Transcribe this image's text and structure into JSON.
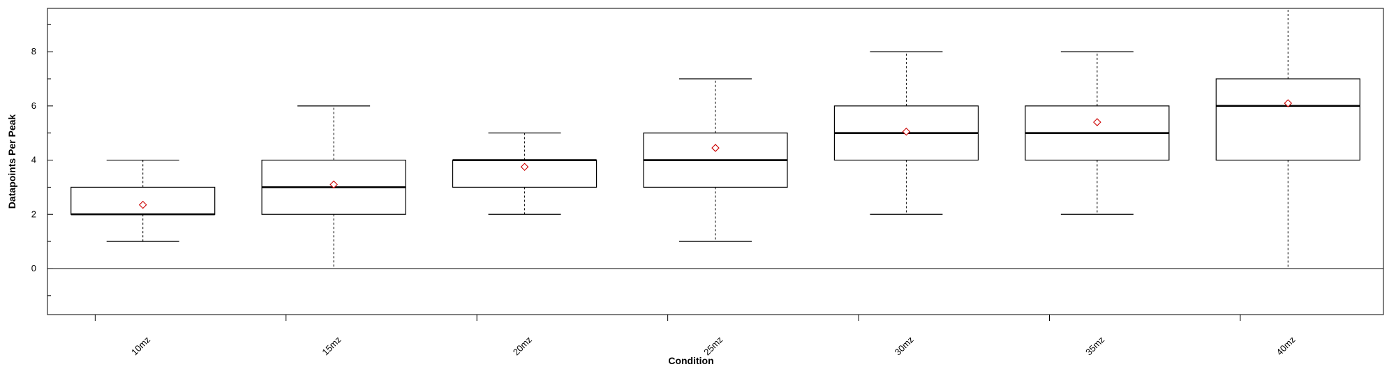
{
  "chart_data": {
    "type": "box",
    "xlabel": "Condition",
    "ylabel": "Datapoints Per Peak",
    "ylim": [
      -1.7,
      9.6
    ],
    "yticks": [
      0,
      2,
      4,
      6,
      8
    ],
    "categories": [
      "10mz",
      "15mz",
      "20mz",
      "25mz",
      "30mz",
      "35mz",
      "40mz"
    ],
    "boxes": [
      {
        "label": "10mz",
        "min": 1,
        "q1": 2,
        "median": 2,
        "q3": 3,
        "max": 4,
        "mean": 2.35
      },
      {
        "label": "15mz",
        "min": 0,
        "q1": 2,
        "median": 3,
        "q3": 4,
        "max": 6,
        "mean": 3.1
      },
      {
        "label": "20mz",
        "min": 2,
        "q1": 3,
        "median": 4,
        "q3": 4,
        "max": 5,
        "mean": 3.75
      },
      {
        "label": "25mz",
        "min": 1,
        "q1": 3,
        "median": 4,
        "q3": 5,
        "max": 7,
        "mean": 4.45
      },
      {
        "label": "30mz",
        "min": 2,
        "q1": 4,
        "median": 5,
        "q3": 6,
        "max": 8,
        "mean": 5.05
      },
      {
        "label": "35mz",
        "min": 2,
        "q1": 4,
        "median": 5,
        "q3": 6,
        "max": 8,
        "mean": 5.4
      },
      {
        "label": "40mz",
        "min": 0,
        "q1": 4,
        "median": 6,
        "q3": 7,
        "max": 9.6,
        "mean": 6.1
      }
    ],
    "reference_line": 0,
    "grid": false,
    "legend": "none",
    "colors": {
      "box": "#000000",
      "mean_marker": "#cc0000"
    }
  }
}
